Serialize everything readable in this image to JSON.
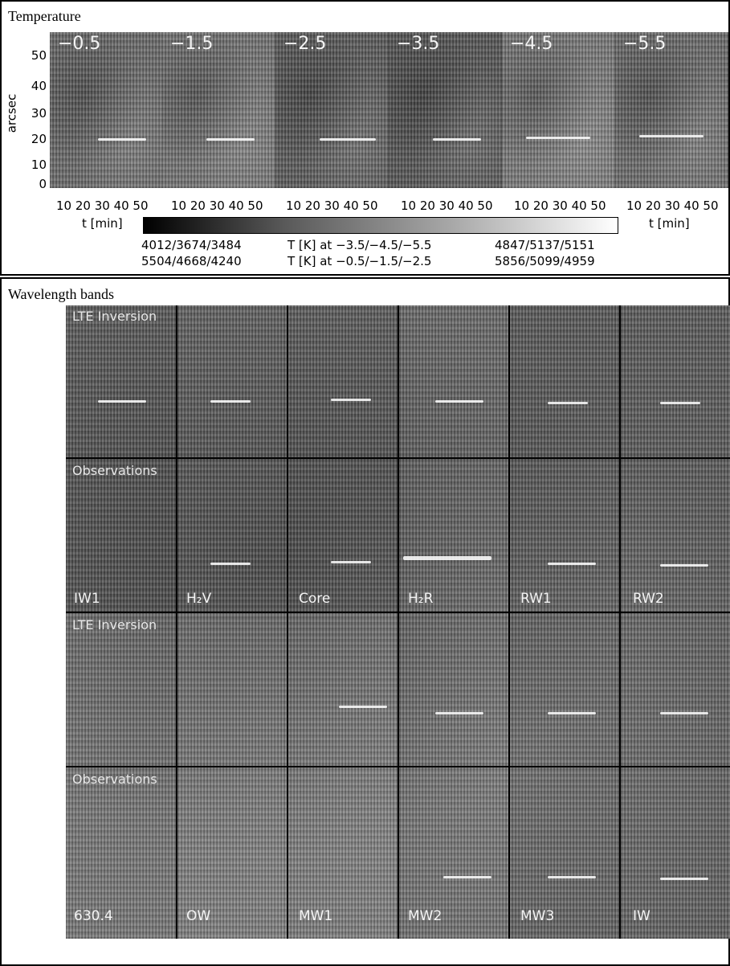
{
  "temperature": {
    "title": "Temperature",
    "panels": [
      "−0.5",
      "−1.5",
      "−2.5",
      "−3.5",
      "−4.5",
      "−5.5"
    ],
    "ylabel": "arcsec",
    "yticks": [
      "50",
      "40",
      "30",
      "20",
      "10",
      "0"
    ],
    "xticks": "10 20 30 40 50",
    "xlabel": "t [min]",
    "colorbar": {
      "row1_left": "4012/3674/3484",
      "row1_mid": "T [K] at −3.5/−4.5/−5.5",
      "row1_right": "4847/5137/5151",
      "row2_left": "5504/4668/4240",
      "row2_mid": "T [K] at −0.5/−1.5/−2.5",
      "row2_right": "5856/5099/4959"
    }
  },
  "wavelength": {
    "title": "Wavelength bands",
    "row_labels": [
      "LTE Inversion",
      "Observations",
      "LTE Inversion",
      "Observations"
    ],
    "bands_top": [
      "IW1",
      "H₂V",
      "Core",
      "H₂R",
      "RW1",
      "RW2"
    ],
    "bands_bottom": [
      "630.4",
      "OW",
      "MW1",
      "MW2",
      "MW3",
      "IW"
    ]
  }
}
